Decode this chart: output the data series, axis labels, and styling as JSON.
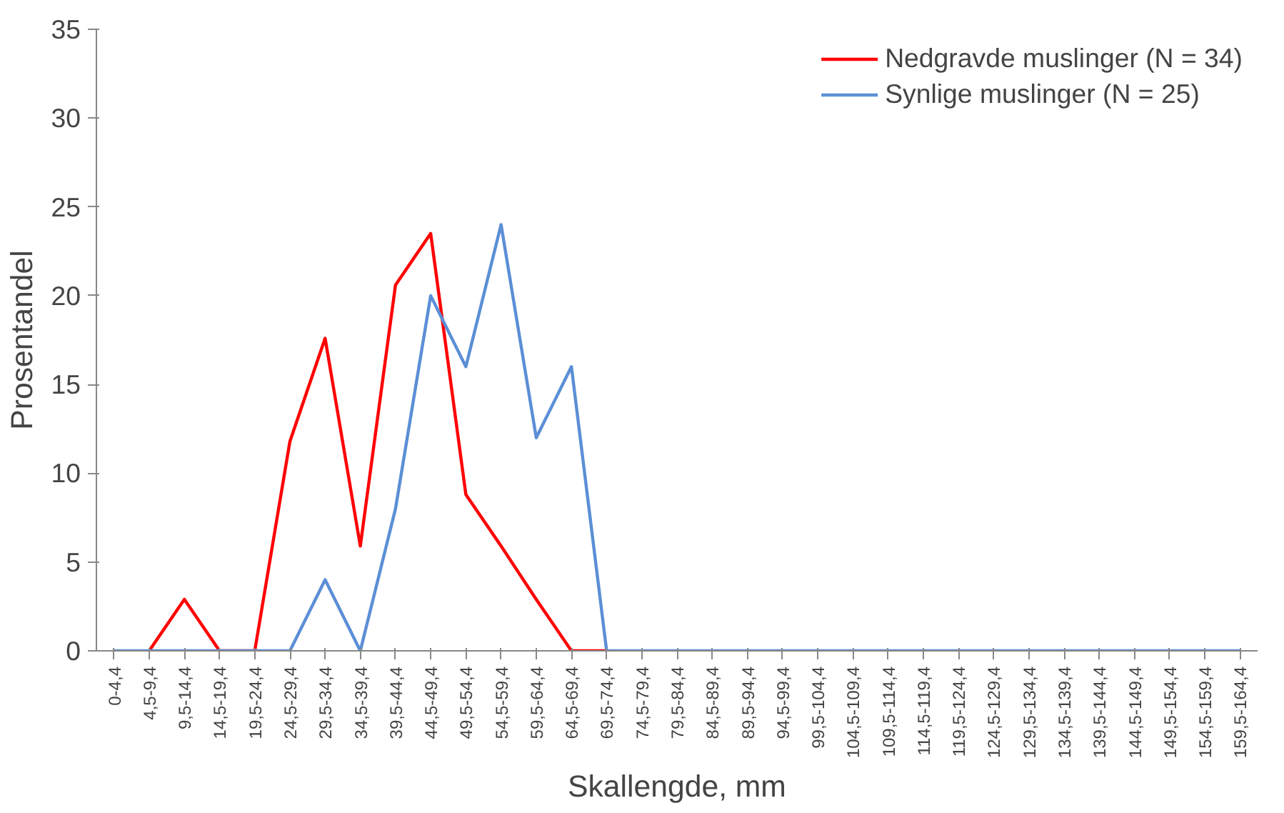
{
  "chart_data": {
    "type": "line",
    "xlabel": "Skallengde, mm",
    "ylabel": "Prosentandel",
    "categories": [
      "0-4,4",
      "4,5-9,4",
      "9,5-14,4",
      "14,5-19,4",
      "19,5-24,4",
      "24,5-29,4",
      "29,5-34,4",
      "34,5-39,4",
      "39,5-44,4",
      "44,5-49,4",
      "49,5-54,4",
      "54,5-59,4",
      "59,5-64,4",
      "64,5-69,4",
      "69,5-74,4",
      "74,5-79,4",
      "79,5-84,4",
      "84,5-89,4",
      "89,5-94,4",
      "94,5-99,4",
      "99,5-104,4",
      "104,5-109,4",
      "109,5-114,4",
      "114,5-119,4",
      "119,5-124,4",
      "124,5-129,4",
      "129,5-134,4",
      "134,5-139,4",
      "139,5-144,4",
      "144,5-149,4",
      "149,5-154,4",
      "154,5-159,4",
      "159,5-164,4"
    ],
    "series": [
      {
        "name": "Nedgravde muslinger (N = 34)",
        "color": "#ff0000",
        "values": [
          null,
          0,
          2.9,
          0,
          0,
          11.8,
          17.6,
          5.9,
          20.6,
          23.5,
          8.8,
          5.9,
          2.9,
          0,
          0,
          null,
          null,
          null,
          null,
          null,
          null,
          null,
          null,
          null,
          null,
          null,
          null,
          null,
          null,
          null,
          null,
          null,
          null
        ]
      },
      {
        "name": "Synlige muslinger (N = 25)",
        "color": "#5b8fd6",
        "values": [
          0,
          0,
          0,
          0,
          0,
          0,
          4,
          0,
          8,
          20,
          16,
          24,
          12,
          16,
          0,
          0,
          0,
          0,
          0,
          0,
          0,
          0,
          0,
          0,
          0,
          0,
          0,
          0,
          0,
          0,
          0,
          0,
          0
        ]
      }
    ],
    "ylim": [
      0,
      35
    ],
    "yticks": [
      0,
      5,
      10,
      15,
      20,
      25,
      30,
      35
    ],
    "grid": false,
    "legend": "top right",
    "marker": "none",
    "line_style": "solid"
  }
}
